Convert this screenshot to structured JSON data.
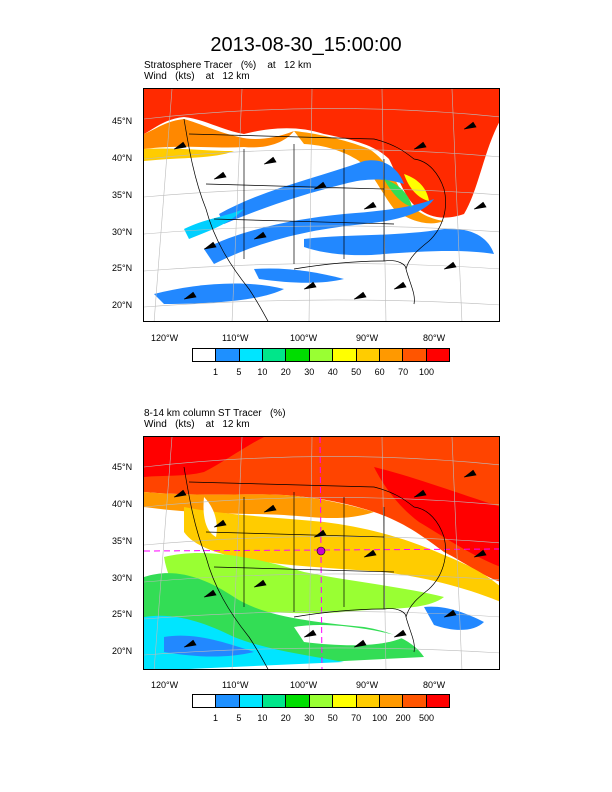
{
  "title": "2013-08-30_15:00:00",
  "panels": [
    {
      "line1": "Stratosphere Tracer   (%)    at   12 km",
      "line2": "Wind   (kts)    at   12 km",
      "lat_ticks": [
        "45°N",
        "40°N",
        "35°N",
        "30°N",
        "25°N",
        "20°N"
      ],
      "lon_ticks": [
        "120°W",
        "110°W",
        "100°W",
        "90°W",
        "80°W"
      ],
      "colorbar_labels": [
        "1",
        "5",
        "10",
        "20",
        "30",
        "40",
        "50",
        "60",
        "70",
        "100"
      ],
      "colorbar_colors": [
        "#ffffff",
        "#1e90ff",
        "#00e5ff",
        "#00e68a",
        "#00dd00",
        "#99ff33",
        "#ffff00",
        "#ffcc00",
        "#ff9900",
        "#ff5500",
        "#ff0000"
      ]
    },
    {
      "line1": "8-14 km column ST Tracer   (%)",
      "line2": "Wind   (kts)    at   12 km",
      "lat_ticks": [
        "45°N",
        "40°N",
        "35°N",
        "30°N",
        "25°N",
        "20°N"
      ],
      "lon_ticks": [
        "120°W",
        "110°W",
        "100°W",
        "90°W",
        "80°W"
      ],
      "colorbar_labels": [
        "1",
        "5",
        "10",
        "20",
        "30",
        "50",
        "70",
        "100",
        "200",
        "500"
      ],
      "colorbar_colors": [
        "#ffffff",
        "#1e90ff",
        "#00e5ff",
        "#00e68a",
        "#00dd00",
        "#99ff33",
        "#ffff00",
        "#ffcc00",
        "#ff9900",
        "#ff5500",
        "#ff0000"
      ]
    }
  ]
}
